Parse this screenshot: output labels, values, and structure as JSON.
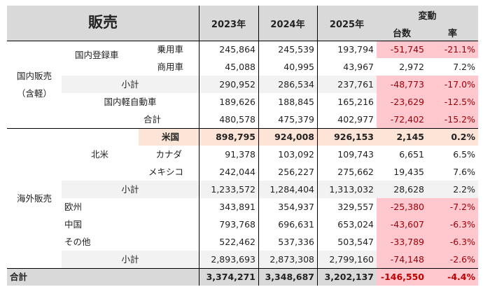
{
  "header": {
    "title": "販売",
    "years": [
      "2023年",
      "2024年",
      "2025年"
    ],
    "change": "変動",
    "change_units": "台数",
    "change_rate": "率"
  },
  "labels": {
    "domestic_sales": "国内販売",
    "domestic_sales_note": "（含軽）",
    "domestic_registered": "国内登録車",
    "passenger": "乗用車",
    "commercial": "商用車",
    "subtotal": "小計",
    "domestic_kei": "国内軽自動車",
    "total": "合計",
    "overseas_sales": "海外販売",
    "north_america": "北米",
    "usa": "米国",
    "canada": "カナダ",
    "mexico": "メキシコ",
    "europe": "欧州",
    "china": "中国",
    "other": "その他",
    "grand_total": "合計"
  },
  "colors": {
    "header_bg": "#d9d9d9",
    "subtotal_bg": "#f2f2f2",
    "negative_bg": "#ffc7ce",
    "negative_text": "#9c0006",
    "highlight_bg": "#fce4d6"
  },
  "rows": [
    {
      "key": "passenger",
      "values": [
        "245,864",
        "245,539",
        "193,794",
        "-51,745",
        "-21.1%"
      ],
      "negative": true
    },
    {
      "key": "commercial",
      "values": [
        "45,088",
        "40,995",
        "43,967",
        "2,972",
        "7.2%"
      ],
      "negative": false
    },
    {
      "key": "domestic_registered_subtotal",
      "values": [
        "290,952",
        "286,534",
        "237,761",
        "-48,773",
        "-17.0%"
      ],
      "negative": true,
      "subtotal": true
    },
    {
      "key": "domestic_kei",
      "values": [
        "189,626",
        "188,845",
        "165,216",
        "-23,629",
        "-12.5%"
      ],
      "negative": true
    },
    {
      "key": "domestic_total",
      "values": [
        "480,578",
        "475,379",
        "402,977",
        "-72,402",
        "-15.2%"
      ],
      "negative": true
    },
    {
      "key": "usa",
      "values": [
        "898,795",
        "924,008",
        "926,153",
        "2,145",
        "0.2%"
      ],
      "negative": false,
      "highlight": true
    },
    {
      "key": "canada",
      "values": [
        "91,378",
        "103,092",
        "109,743",
        "6,651",
        "6.5%"
      ],
      "negative": false
    },
    {
      "key": "mexico",
      "values": [
        "242,044",
        "256,227",
        "275,662",
        "19,435",
        "7.6%"
      ],
      "negative": false
    },
    {
      "key": "north_america_subtotal",
      "values": [
        "1,233,572",
        "1,284,404",
        "1,313,032",
        "28,628",
        "2.2%"
      ],
      "negative": false,
      "subtotal": true
    },
    {
      "key": "europe",
      "values": [
        "343,891",
        "354,937",
        "329,557",
        "-25,380",
        "-7.2%"
      ],
      "negative": true
    },
    {
      "key": "china",
      "values": [
        "793,768",
        "696,631",
        "653,024",
        "-43,607",
        "-6.3%"
      ],
      "negative": true
    },
    {
      "key": "other",
      "values": [
        "522,462",
        "537,336",
        "503,547",
        "-33,789",
        "-6.3%"
      ],
      "negative": true
    },
    {
      "key": "overseas_subtotal",
      "values": [
        "2,893,693",
        "2,873,308",
        "2,799,160",
        "-74,148",
        "-2.6%"
      ],
      "negative": true,
      "subtotal": true
    },
    {
      "key": "grand_total",
      "values": [
        "3,374,271",
        "3,348,687",
        "3,202,137",
        "-146,550",
        "-4.4%"
      ],
      "negative": true,
      "total": true
    }
  ]
}
